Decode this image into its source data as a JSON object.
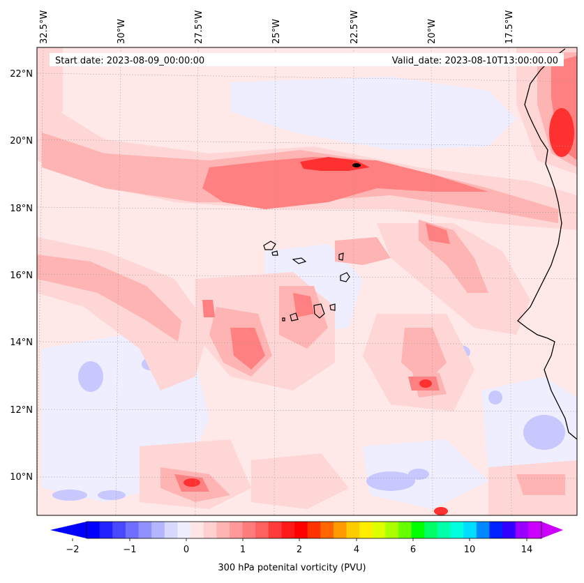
{
  "start_date": "Start date: 2023-08-09_00:00:00",
  "valid_date": "Valid_date: 2023-08-10T13:00:00.00",
  "lon_labels": [
    "32.5°W",
    "30°W",
    "27.5°W",
    "25°W",
    "22.5°W",
    "20°W",
    "17.5°W"
  ],
  "lat_labels": [
    "22°N",
    "20°N",
    "18°N",
    "16°N",
    "14°N",
    "12°N",
    "10°N"
  ],
  "colorbar": {
    "title": "300 hPa potenital vorticity (PVU)",
    "tick_labels": [
      "−2",
      "−1",
      "0",
      "1",
      "2",
      "4",
      "6",
      "10",
      "14"
    ],
    "colors": [
      "#0000ff",
      "#2222ff",
      "#4848ff",
      "#6e6eff",
      "#9090ff",
      "#b4b4ff",
      "#d8d8ff",
      "#eeeeff",
      "#ffe6e6",
      "#ffd0d0",
      "#ffb4b4",
      "#ff9898",
      "#ff7c7c",
      "#ff6060",
      "#ff3a3a",
      "#ff1a1a",
      "#ff0000",
      "#ff3300",
      "#ff6600",
      "#ff9900",
      "#ffcc00",
      "#ffee00",
      "#ddff00",
      "#aaff00",
      "#66ff00",
      "#00ff00",
      "#00ff66",
      "#00ffaa",
      "#00ffdd",
      "#00ddff",
      "#0088ff",
      "#0022ff",
      "#3300ff",
      "#9900ff",
      "#cc00ff"
    ],
    "extend_min_color": "#0000ff",
    "extend_max_color": "#cc00ff"
  },
  "colors": {
    "background": "#ffe8e8",
    "light_blue": "#eeeeff",
    "blue": "#c8c8ff",
    "pink_light": "#ffd6d6",
    "pink": "#ffb4b4",
    "red_mid": "#ff8080",
    "red": "#ff3030",
    "coast": "#000000"
  }
}
